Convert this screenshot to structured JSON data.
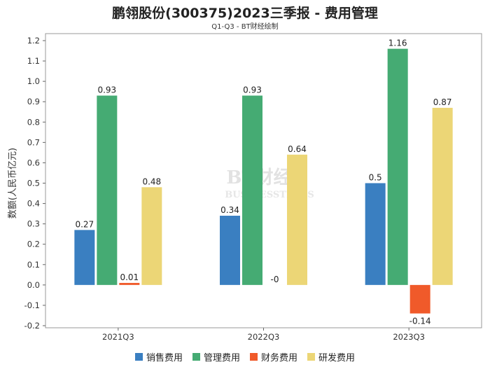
{
  "chart_data": {
    "type": "bar",
    "title": "鹏翎股份(300375)2023三季报 - 费用管理",
    "subtitle": "Q1-Q3 - BT财经绘制",
    "xlabel": "",
    "ylabel": "数额(人民币亿元)",
    "ylim": [
      -0.2,
      1.2
    ],
    "ytick_step": 0.1,
    "categories": [
      "2021Q3",
      "2022Q3",
      "2023Q3"
    ],
    "series": [
      {
        "name": "销售费用",
        "color": "#3a7fc1",
        "values": [
          0.27,
          0.34,
          0.5
        ],
        "labels": [
          "0.27",
          "0.34",
          "0.5"
        ]
      },
      {
        "name": "管理费用",
        "color": "#45ab73",
        "values": [
          0.93,
          0.93,
          1.16
        ],
        "labels": [
          "0.93",
          "0.93",
          "1.16"
        ]
      },
      {
        "name": "财务费用",
        "color": "#f05a2a",
        "values": [
          0.01,
          0,
          -0.14
        ],
        "labels": [
          "0.01",
          "-0",
          "-0.14"
        ]
      },
      {
        "name": "研发费用",
        "color": "#ecd676",
        "values": [
          0.48,
          0.64,
          0.87
        ],
        "labels": [
          "0.48",
          "0.64",
          "0.87"
        ]
      }
    ],
    "watermark": {
      "main": "BT财经",
      "sub": "BUSINESSTIMES"
    }
  }
}
